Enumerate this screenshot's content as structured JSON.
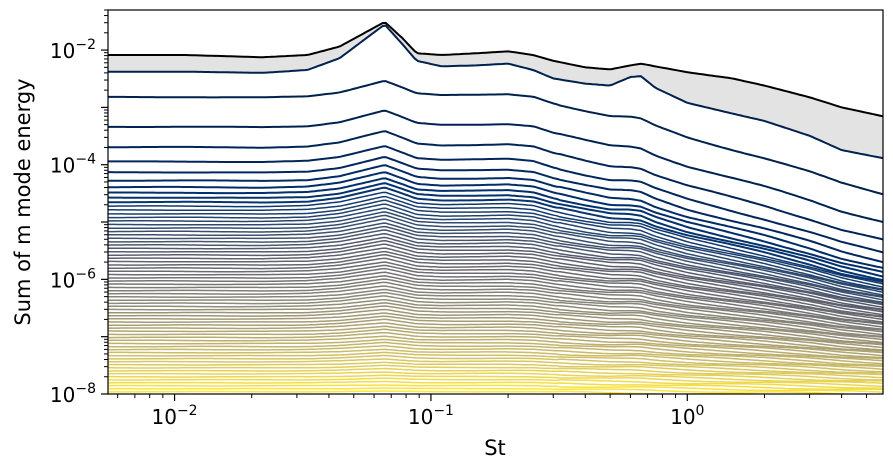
{
  "chart_data": {
    "type": "line",
    "xlabel": "St",
    "ylabel": "Sum of m mode energy",
    "xscale": "log",
    "yscale": "log",
    "xlim": [
      0.0055,
      5.8
    ],
    "ylim": [
      1e-08,
      0.05
    ],
    "grid": false,
    "x_ticks": [
      {
        "value": 0.01,
        "base": "10",
        "exp": "−2"
      },
      {
        "value": 0.1,
        "base": "10",
        "exp": "−1"
      },
      {
        "value": 1,
        "base": "10",
        "exp": "0"
      }
    ],
    "y_ticks": [
      {
        "value": 0.01,
        "base": "10",
        "exp": "−2"
      },
      {
        "value": 0.0001,
        "base": "10",
        "exp": "−4"
      },
      {
        "value": 1e-06,
        "base": "10",
        "exp": "−6"
      },
      {
        "value": 1e-08,
        "base": "10",
        "exp": "−8"
      }
    ],
    "x": [
      0.0055,
      0.011,
      0.022,
      0.033,
      0.044,
      0.066,
      0.077,
      0.088,
      0.11,
      0.15,
      0.2,
      0.25,
      0.3,
      0.4,
      0.5,
      0.6,
      0.66,
      0.75,
      1.0,
      1.5,
      2.0,
      3.0,
      4.0,
      5.8
    ],
    "total_energy": [
      0.0082,
      0.0082,
      0.0075,
      0.0082,
      0.0115,
      0.031,
      0.0165,
      0.0088,
      0.0082,
      0.0088,
      0.0095,
      0.0082,
      0.0065,
      0.005,
      0.0046,
      0.0054,
      0.0058,
      0.0052,
      0.0041,
      0.0032,
      0.0024,
      0.0015,
      0.001,
      0.0007
    ],
    "mode_1_energy": [
      0.0042,
      0.0042,
      0.004,
      0.0045,
      0.0072,
      0.028,
      0.013,
      0.0065,
      0.0052,
      0.0054,
      0.0058,
      0.0045,
      0.0032,
      0.0026,
      0.0024,
      0.0034,
      0.0035,
      0.0022,
      0.0012,
      0.00078,
      0.00058,
      0.00032,
      0.00018,
      0.00013
    ],
    "band_fill_color": "#e3e3e3",
    "total_line_color": "#000000",
    "mode_line_colors": [
      "#00204d",
      "#00306f",
      "#2f4a6e",
      "#575c6d",
      "#6f6e72",
      "#8a8779",
      "#a69d75",
      "#c4b56c",
      "#e2cf5e",
      "#fee838"
    ],
    "mode_count": 70
  }
}
